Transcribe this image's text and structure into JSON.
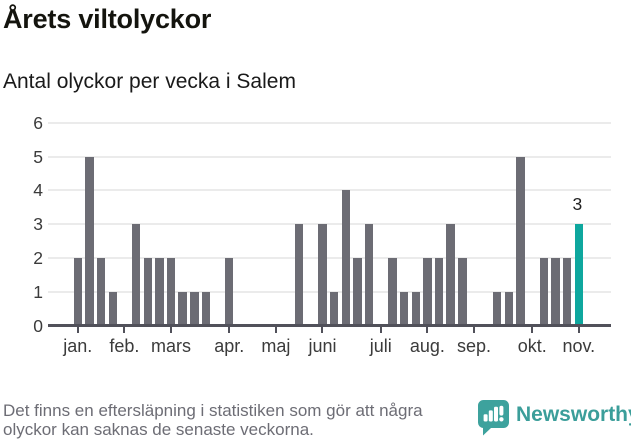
{
  "header": {
    "title": "Årets viltolyckor",
    "subtitle": "Antal olyckor per vecka i Salem"
  },
  "chart_data": {
    "type": "bar",
    "title": "Årets viltolyckor",
    "subtitle": "Antal olyckor per vecka i Salem",
    "x_unit": "week",
    "values": [
      2,
      5,
      2,
      1,
      0,
      3,
      2,
      2,
      2,
      1,
      1,
      1,
      0,
      2,
      0,
      0,
      0,
      0,
      0,
      3,
      0,
      3,
      1,
      4,
      2,
      3,
      0,
      2,
      1,
      1,
      2,
      2,
      3,
      2,
      0,
      0,
      1,
      1,
      5,
      0,
      2,
      2,
      2,
      3
    ],
    "highlight_index": 43,
    "highlight_value_label": "3",
    "y_ticks": [
      "0",
      "1",
      "2",
      "3",
      "4",
      "5",
      "6"
    ],
    "ylim": [
      0,
      6
    ],
    "grid": "horizontal",
    "legend": "none",
    "x_tick_labels": [
      "jan.",
      "feb.",
      "mars",
      "apr.",
      "maj",
      "juni",
      "juli",
      "aug.",
      "sep.",
      "okt.",
      "nov."
    ],
    "x_tick_week_index": [
      0,
      4,
      8,
      13,
      17,
      21,
      26,
      30,
      34,
      39,
      43
    ],
    "colors": {
      "bar": "#6c6c74",
      "highlight": "#0ea79e",
      "grid": "#ebebeb",
      "axis": "#51515a"
    }
  },
  "footer": {
    "note_line1": "Det finns en eftersläpning i statistiken som gör att några",
    "note_line2": "olyckor kan saknas de senaste veckorna.",
    "brand": "Newsworthy",
    "brand_color": "#3b9e9a",
    "brand_icon": "newsworthy-speech-bubble-chart-icon"
  }
}
